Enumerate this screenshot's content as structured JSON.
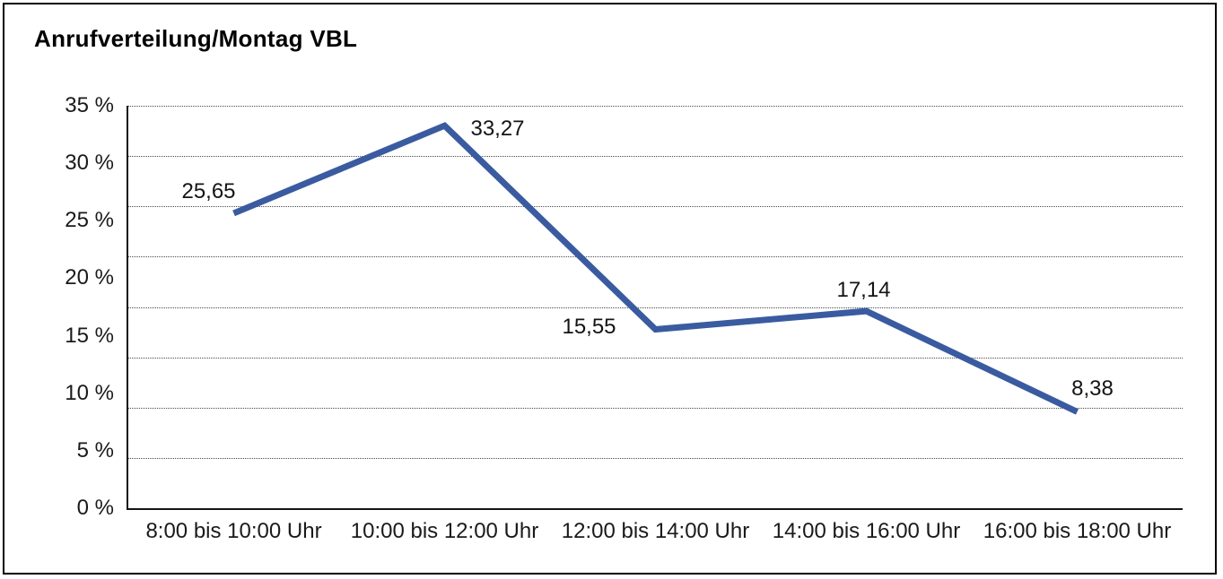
{
  "title": "Anrufverteilung/Montag VBL",
  "chart_data": {
    "type": "line",
    "title": "Anrufverteilung/Montag VBL",
    "categories": [
      "8:00 bis 10:00 Uhr",
      "10:00 bis 12:00 Uhr",
      "12:00 bis 14:00 Uhr",
      "14:00 bis 16:00 Uhr",
      "16:00 bis 18:00 Uhr"
    ],
    "values": [
      25.65,
      33.27,
      15.55,
      17.14,
      8.38
    ],
    "point_labels": [
      "25,65",
      "33,27",
      "15,55",
      "17,14",
      "8,38"
    ],
    "y_ticks": [
      0,
      5,
      10,
      15,
      20,
      25,
      30,
      35
    ],
    "y_tick_labels": [
      "0 %",
      "5 %",
      "10 %",
      "15 %",
      "20 %",
      "25 %",
      "30 %",
      "35 %"
    ],
    "ylim": [
      0,
      35
    ],
    "xlabel": "",
    "ylabel": "",
    "legend": "none",
    "grid": "horizontal-dotted",
    "gridline_divisions": 8,
    "line_color": "#3A5BA0",
    "axis_color": "#141414",
    "background_color": "#FFFFFF"
  }
}
